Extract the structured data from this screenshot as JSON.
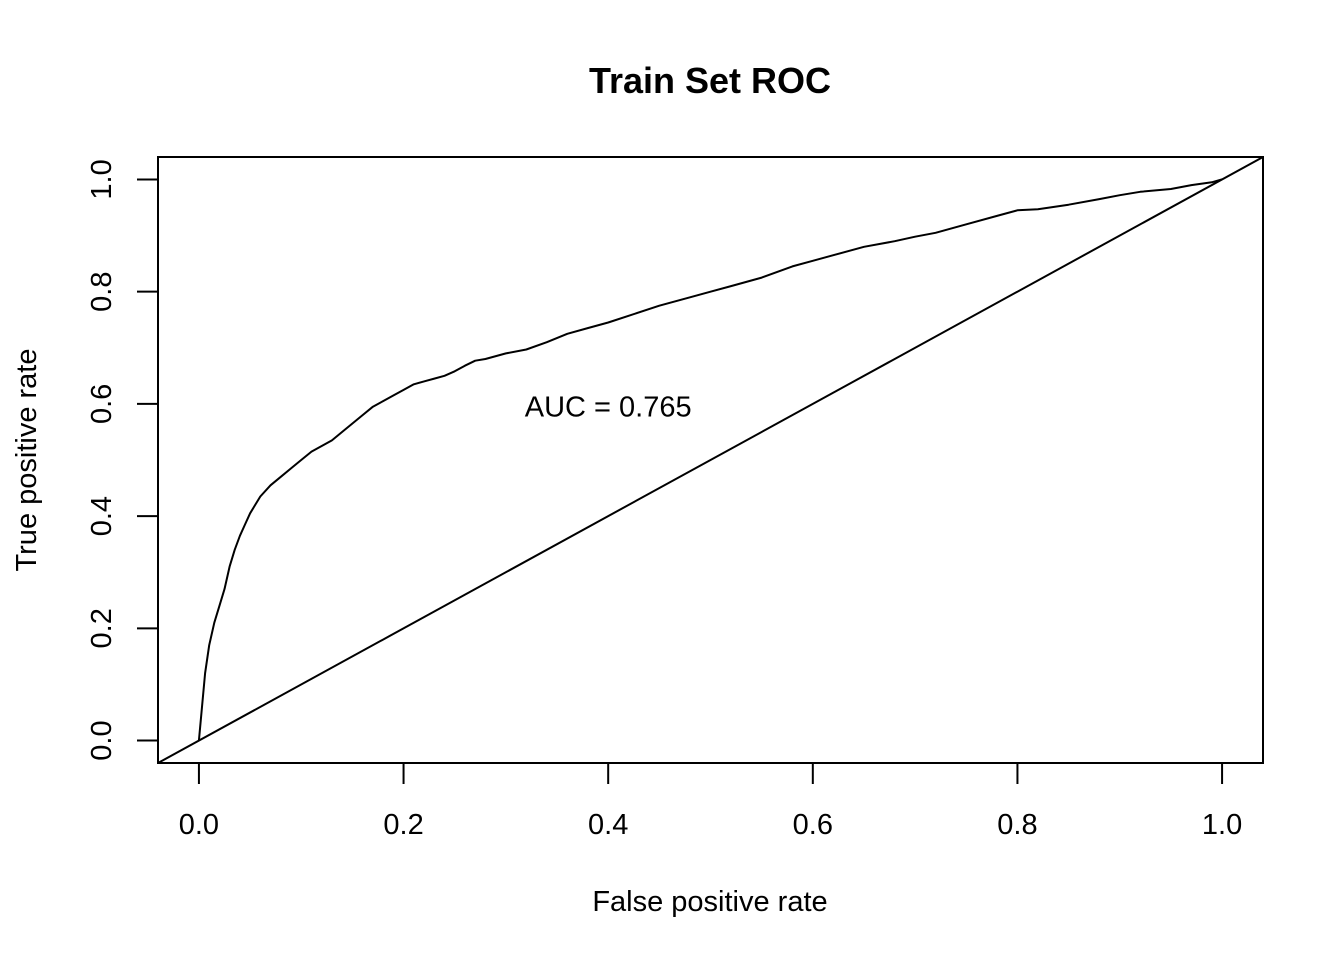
{
  "chart_data": {
    "type": "line",
    "title": "Train Set ROC",
    "xlabel": "False positive rate",
    "ylabel": "True positive rate",
    "xlim": [
      -0.04,
      1.04
    ],
    "ylim": [
      -0.04,
      1.04
    ],
    "xticks": [
      0.0,
      0.2,
      0.4,
      0.6,
      0.8,
      1.0
    ],
    "xtick_labels": [
      "0.0",
      "0.2",
      "0.4",
      "0.6",
      "0.8",
      "1.0"
    ],
    "yticks": [
      0.0,
      0.2,
      0.4,
      0.6,
      0.8,
      1.0
    ],
    "ytick_labels": [
      "0.0",
      "0.2",
      "0.4",
      "0.6",
      "0.8",
      "1.0"
    ],
    "grid": false,
    "annotations": [
      {
        "text": "AUC = 0.765",
        "x": 0.4,
        "y": 0.595
      }
    ],
    "series": [
      {
        "line_color": "#000000",
        "x": [
          0.0,
          0.003,
          0.006,
          0.01,
          0.015,
          0.02,
          0.025,
          0.03,
          0.035,
          0.04,
          0.045,
          0.05,
          0.055,
          0.06,
          0.07,
          0.08,
          0.09,
          0.1,
          0.11,
          0.12,
          0.13,
          0.14,
          0.15,
          0.16,
          0.17,
          0.18,
          0.19,
          0.2,
          0.21,
          0.22,
          0.23,
          0.24,
          0.25,
          0.26,
          0.27,
          0.28,
          0.3,
          0.32,
          0.34,
          0.36,
          0.38,
          0.4,
          0.42,
          0.45,
          0.48,
          0.5,
          0.52,
          0.55,
          0.58,
          0.6,
          0.62,
          0.65,
          0.68,
          0.7,
          0.72,
          0.75,
          0.78,
          0.8,
          0.82,
          0.85,
          0.88,
          0.9,
          0.92,
          0.95,
          0.97,
          0.99,
          1.0
        ],
        "y": [
          0.0,
          0.06,
          0.12,
          0.17,
          0.21,
          0.24,
          0.27,
          0.31,
          0.34,
          0.365,
          0.385,
          0.405,
          0.42,
          0.435,
          0.455,
          0.47,
          0.485,
          0.5,
          0.515,
          0.525,
          0.535,
          0.55,
          0.565,
          0.58,
          0.595,
          0.605,
          0.615,
          0.625,
          0.635,
          0.64,
          0.645,
          0.65,
          0.658,
          0.668,
          0.677,
          0.68,
          0.69,
          0.697,
          0.71,
          0.725,
          0.735,
          0.745,
          0.757,
          0.775,
          0.79,
          0.8,
          0.81,
          0.825,
          0.845,
          0.855,
          0.865,
          0.88,
          0.89,
          0.898,
          0.905,
          0.92,
          0.935,
          0.945,
          0.947,
          0.955,
          0.965,
          0.972,
          0.978,
          0.983,
          0.99,
          0.995,
          1.0
        ]
      },
      {
        "line_color": "#000000",
        "x": [
          -0.04,
          1.04
        ],
        "y": [
          -0.04,
          1.04
        ]
      }
    ]
  }
}
